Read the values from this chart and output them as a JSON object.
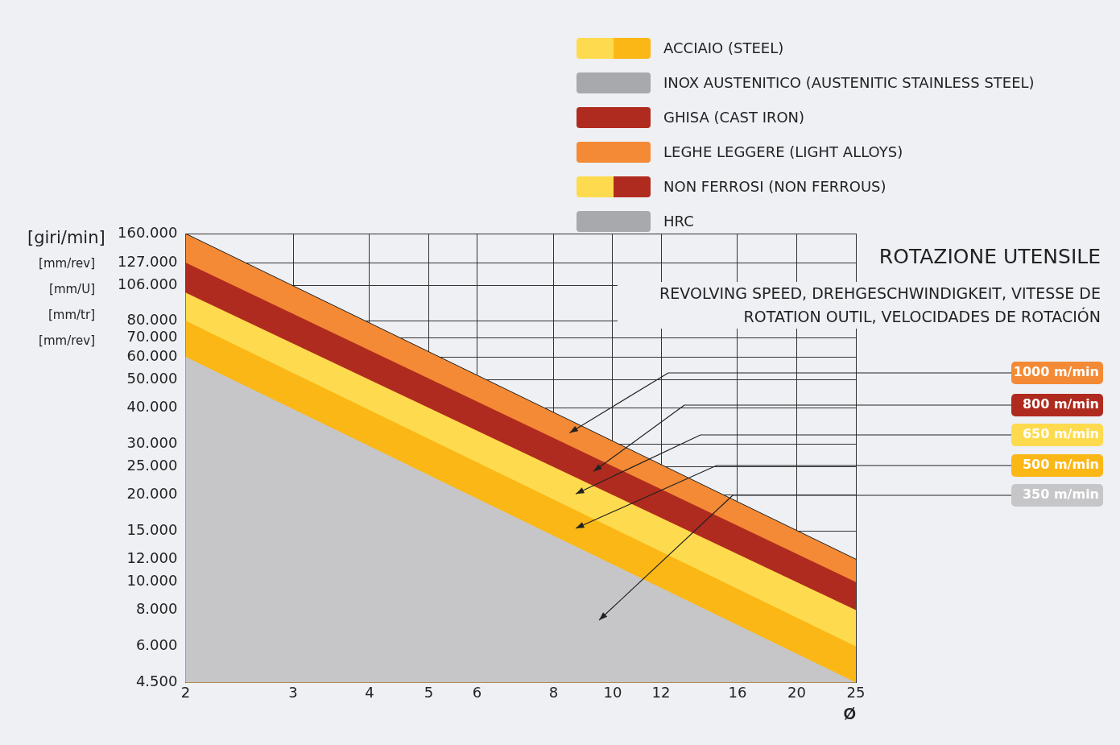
{
  "chart_data": {
    "type": "area",
    "title": "ROTAZIONE UTENSILE",
    "subtitle": "REVOLVING SPEED, DREHGESCHWINDIGKEIT, VITESSE DE ROTATION OUTIL, VELOCIDADES DE ROTACIÓN",
    "xlabel": "Ø",
    "ylabel": "[giri/min]",
    "annotations": [
      "[mm/rev]",
      "[mm/U]",
      "[mm/tr]",
      "[mm/rev]",
      "ACCIAIO (STEEL)",
      "INOX AUSTENITICO (AUSTENITIC STAINLESS STEEL)",
      "GHISA (CAST IRON)",
      "LEGHE LEGGERE (LIGHT ALLOYS)",
      "NON FERROSI (NON FERROUS)",
      "HRC"
    ],
    "x": [
      2,
      25
    ],
    "series": [
      {
        "name": "1000 m/min",
        "color": "#f48a35",
        "values": [
          160000,
          12000
        ]
      },
      {
        "name": "800 m/min",
        "color": "#b02b1f",
        "values": [
          127000,
          10000
        ]
      },
      {
        "name": "650 m/min",
        "color": "#fedb4e",
        "values": [
          100000,
          8000
        ]
      },
      {
        "name": "500 m/min",
        "color": "#fbb716",
        "values": [
          80000,
          6000
        ]
      },
      {
        "name": "350 m/min",
        "color": "#c6c6c8",
        "values": [
          60000,
          4500
        ]
      }
    ],
    "log": "xy",
    "xlim": [
      2,
      25
    ],
    "xticks": [
      2,
      3,
      4,
      5,
      6,
      8,
      10,
      12,
      16,
      20,
      25
    ],
    "ylim": [
      4500,
      160000
    ],
    "yticks": [
      {
        "value": 4500,
        "label": "4.500"
      },
      {
        "value": 6000,
        "label": "6.000"
      },
      {
        "value": 8000,
        "label": "8.000"
      },
      {
        "value": 10000,
        "label": "10.000"
      },
      {
        "value": 12000,
        "label": "12.000"
      },
      {
        "value": 15000,
        "label": "15.000"
      },
      {
        "value": 20000,
        "label": "20.000"
      },
      {
        "value": 25000,
        "label": "25.000"
      },
      {
        "value": 30000,
        "label": "30.000"
      },
      {
        "value": 40000,
        "label": "40.000"
      },
      {
        "value": 50000,
        "label": "50.000"
      },
      {
        "value": 60000,
        "label": "60.000"
      },
      {
        "value": 70000,
        "label": "70.000"
      },
      {
        "value": 80000,
        "label": "80.000"
      },
      {
        "value": 106000,
        "label": "106.000"
      },
      {
        "value": 127000,
        "label": "127.000"
      },
      {
        "value": 160000,
        "label": "160.000"
      }
    ],
    "grid": true,
    "legend": false
  }
}
